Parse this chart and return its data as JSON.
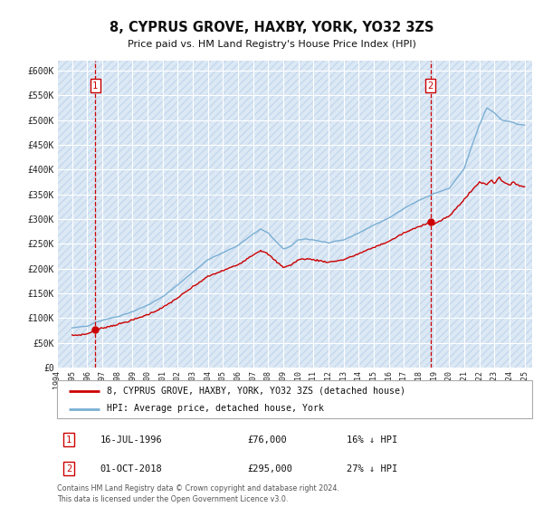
{
  "title": "8, CYPRUS GROVE, HAXBY, YORK, YO32 3ZS",
  "subtitle": "Price paid vs. HM Land Registry's House Price Index (HPI)",
  "ylim": [
    0,
    620000
  ],
  "yticks": [
    0,
    50000,
    100000,
    150000,
    200000,
    250000,
    300000,
    350000,
    400000,
    450000,
    500000,
    550000,
    600000
  ],
  "ytick_labels": [
    "£0",
    "£50K",
    "£100K",
    "£150K",
    "£200K",
    "£250K",
    "£300K",
    "£350K",
    "£400K",
    "£450K",
    "£500K",
    "£550K",
    "£600K"
  ],
  "xlim_start": 1994.0,
  "xlim_end": 2025.5,
  "bg_color": "#dce9f5",
  "hatch_color": "#c5d8ed",
  "red_line_color": "#cc0000",
  "blue_line_color": "#7bafd4",
  "marker1_date": 1996.54,
  "marker1_value": 76000,
  "marker2_date": 2018.75,
  "marker2_value": 295000,
  "sale1_label": "16-JUL-1996",
  "sale1_price": "£76,000",
  "sale1_note": "16% ↓ HPI",
  "sale2_label": "01-OCT-2018",
  "sale2_price": "£295,000",
  "sale2_note": "27% ↓ HPI",
  "legend_label1": "8, CYPRUS GROVE, HAXBY, YORK, YO32 3ZS (detached house)",
  "legend_label2": "HPI: Average price, detached house, York",
  "footer1": "Contains HM Land Registry data © Crown copyright and database right 2024.",
  "footer2": "This data is licensed under the Open Government Licence v3.0."
}
